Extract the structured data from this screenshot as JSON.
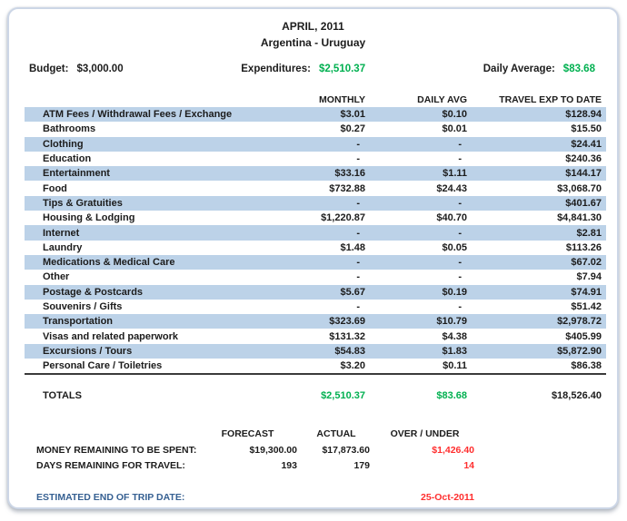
{
  "title": {
    "month": "APRIL, 2011",
    "destination": "Argentina - Uruguay"
  },
  "summary": {
    "budget_label": "Budget:",
    "budget_value": "$3,000.00",
    "expenditures_label": "Expenditures:",
    "expenditures_value": "$2,510.37",
    "daily_average_label": "Daily Average:",
    "daily_average_value": "$83.68"
  },
  "expense_table": {
    "columns": [
      "MONTHLY",
      "DAILY AVG",
      "TRAVEL EXP TO DATE"
    ],
    "rows": [
      {
        "category": "ATM Fees / Withdrawal Fees / Exchange",
        "monthly": "$3.01",
        "daily_avg": "$0.10",
        "to_date": "$128.94"
      },
      {
        "category": "Bathrooms",
        "monthly": "$0.27",
        "daily_avg": "$0.01",
        "to_date": "$15.50"
      },
      {
        "category": "Clothing",
        "monthly": "-",
        "daily_avg": "-",
        "to_date": "$24.41"
      },
      {
        "category": "Education",
        "monthly": "-",
        "daily_avg": "-",
        "to_date": "$240.36"
      },
      {
        "category": "Entertainment",
        "monthly": "$33.16",
        "daily_avg": "$1.11",
        "to_date": "$144.17"
      },
      {
        "category": "Food",
        "monthly": "$732.88",
        "daily_avg": "$24.43",
        "to_date": "$3,068.70"
      },
      {
        "category": "Tips & Gratuities",
        "monthly": "-",
        "daily_avg": "-",
        "to_date": "$401.67"
      },
      {
        "category": "Housing & Lodging",
        "monthly": "$1,220.87",
        "daily_avg": "$40.70",
        "to_date": "$4,841.30"
      },
      {
        "category": "Internet",
        "monthly": "-",
        "daily_avg": "-",
        "to_date": "$2.81"
      },
      {
        "category": "Laundry",
        "monthly": "$1.48",
        "daily_avg": "$0.05",
        "to_date": "$113.26"
      },
      {
        "category": "Medications & Medical Care",
        "monthly": "-",
        "daily_avg": "-",
        "to_date": "$67.02"
      },
      {
        "category": "Other",
        "monthly": "-",
        "daily_avg": "-",
        "to_date": "$7.94"
      },
      {
        "category": "Postage & Postcards",
        "monthly": "$5.67",
        "daily_avg": "$0.19",
        "to_date": "$74.91"
      },
      {
        "category": "Souvenirs / Gifts",
        "monthly": "-",
        "daily_avg": "-",
        "to_date": "$51.42"
      },
      {
        "category": "Transportation",
        "monthly": "$323.69",
        "daily_avg": "$10.79",
        "to_date": "$2,978.72"
      },
      {
        "category": "Visas and related paperwork",
        "monthly": "$131.32",
        "daily_avg": "$4.38",
        "to_date": "$405.99"
      },
      {
        "category": "Excursions / Tours",
        "monthly": "$54.83",
        "daily_avg": "$1.83",
        "to_date": "$5,872.90"
      },
      {
        "category": "Personal Care / Toiletries",
        "monthly": "$3.20",
        "daily_avg": "$0.11",
        "to_date": "$86.38"
      }
    ],
    "totals": {
      "label": "TOTALS",
      "monthly": "$2,510.37",
      "daily_avg": "$83.68",
      "to_date": "$18,526.40"
    }
  },
  "forecast_section": {
    "columns": [
      "FORECAST",
      "ACTUAL",
      "OVER / UNDER"
    ],
    "rows": [
      {
        "label": "MONEY REMAINING TO BE SPENT:",
        "forecast": "$19,300.00",
        "actual": "$17,873.60",
        "over_under": "$1,426.40"
      },
      {
        "label": "DAYS REMAINING FOR TRAVEL:",
        "forecast": "193",
        "actual": "179",
        "over_under": "14"
      }
    ]
  },
  "footer": {
    "label": "ESTIMATED END OF TRIP DATE:",
    "value": "25-Oct-2011"
  },
  "colors": {
    "positive_green": "#00B050",
    "negative_red": "#FF2E2E",
    "row_stripe_blue": "#BCD2E8",
    "footer_label_blue": "#366092",
    "card_border": "#CCD6E6"
  }
}
